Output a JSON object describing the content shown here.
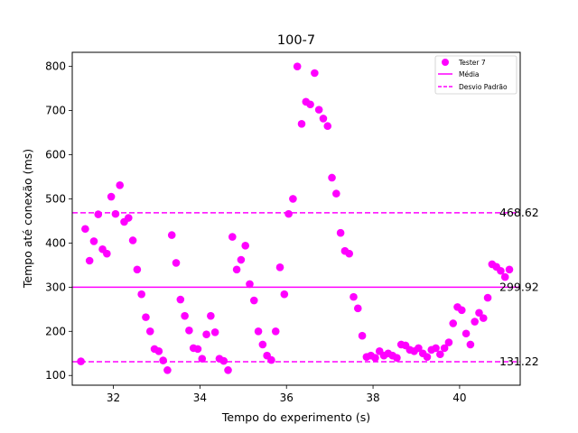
{
  "chart_data": {
    "type": "scatter",
    "title": "100-7",
    "xlabel": "Tempo do experimento (s)",
    "ylabel": "Tempo até conexão (ms)",
    "xlim": [
      31.05,
      41.4
    ],
    "ylim": [
      78,
      832
    ],
    "xticks": [
      32,
      34,
      36,
      38,
      40
    ],
    "yticks": [
      100,
      200,
      300,
      400,
      500,
      600,
      700,
      800
    ],
    "grid": false,
    "legend_position": "top-right",
    "colors": {
      "points": "#ff00ff",
      "mean": "#ff00ff",
      "std": "#ff00ff"
    },
    "series": [
      {
        "name": "Tester 7",
        "x": [
          31.25,
          31.35,
          31.45,
          31.55,
          31.65,
          31.75,
          31.85,
          31.95,
          32.05,
          32.15,
          32.25,
          32.35,
          32.45,
          32.55,
          32.65,
          32.75,
          32.85,
          32.95,
          33.05,
          33.15,
          33.25,
          33.35,
          33.45,
          33.55,
          33.65,
          33.75,
          33.85,
          33.95,
          34.05,
          34.15,
          34.25,
          34.35,
          34.45,
          34.55,
          34.65,
          34.75,
          34.85,
          34.95,
          35.05,
          35.15,
          35.25,
          35.35,
          35.45,
          35.55,
          35.65,
          35.75,
          35.85,
          35.95,
          36.05,
          36.15,
          36.25,
          36.35,
          36.45,
          36.55,
          36.65,
          36.75,
          36.85,
          36.95,
          37.05,
          37.15,
          37.25,
          37.35,
          37.45,
          37.55,
          37.65,
          37.75,
          37.85,
          37.95,
          38.05,
          38.15,
          38.25,
          38.35,
          38.45,
          38.55,
          38.65,
          38.75,
          38.85,
          38.95,
          39.05,
          39.15,
          39.25,
          39.35,
          39.45,
          39.55,
          39.65,
          39.75,
          39.85,
          39.95,
          40.05,
          40.15,
          40.25,
          40.35,
          40.45,
          40.55,
          40.65,
          40.75,
          40.85,
          40.95,
          41.05,
          41.15
        ],
        "y": [
          132,
          432,
          360,
          404,
          465,
          386,
          376,
          505,
          466,
          531,
          448,
          457,
          406,
          340,
          284,
          232,
          200,
          160,
          155,
          134,
          112,
          418,
          355,
          272,
          235,
          202,
          162,
          160,
          138,
          193,
          235,
          198,
          138,
          133,
          112,
          414,
          340,
          362,
          394,
          307,
          270,
          200,
          170,
          145,
          135,
          200,
          345,
          284,
          466,
          500,
          800,
          670,
          720,
          714,
          785,
          702,
          682,
          665,
          548,
          512,
          423,
          382,
          376,
          278,
          252,
          190,
          142,
          145,
          140,
          155,
          145,
          150,
          145,
          140,
          170,
          168,
          158,
          155,
          162,
          150,
          142,
          158,
          162,
          148,
          162,
          175,
          218,
          255,
          248,
          195,
          170,
          222,
          242,
          230,
          276,
          352,
          346,
          337,
          323,
          340
        ]
      }
    ],
    "lines": [
      {
        "name": "Média",
        "value": 299.92,
        "label": "299.92",
        "style": "solid"
      },
      {
        "name": "Desvio Padrão",
        "upper": 468.62,
        "lower": 131.22,
        "upper_label": "468.62",
        "lower_label": "131.22",
        "style": "dashed"
      }
    ]
  }
}
